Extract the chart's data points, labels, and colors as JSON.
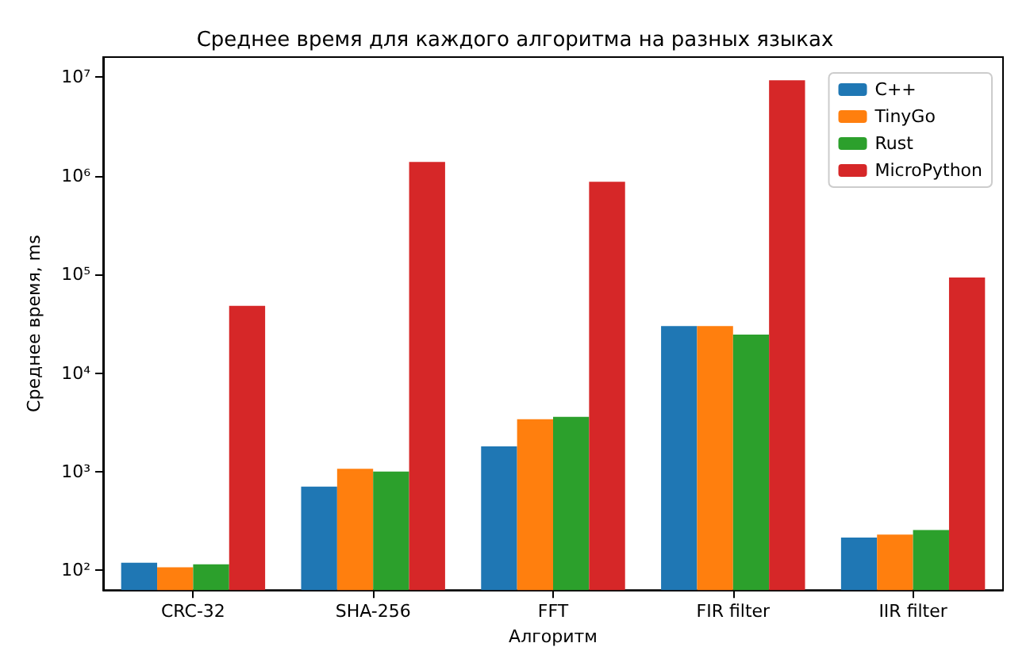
{
  "chart_data": {
    "type": "bar",
    "title": "Среднее время для каждого алгоритма на разных языках",
    "xlabel": "Алгоритм",
    "ylabel": "Среднее время, ms",
    "categories": [
      "CRC-32",
      "SHA-256",
      "FFT",
      "FIR filter",
      "IIR filter"
    ],
    "series": [
      {
        "name": "C++",
        "color": "#1f77b4",
        "values": [
          119,
          705,
          1800,
          30000,
          215
        ]
      },
      {
        "name": "TinyGo",
        "color": "#ff7f0e",
        "values": [
          107,
          1070,
          3400,
          30000,
          230
        ]
      },
      {
        "name": "Rust",
        "color": "#2ca02c",
        "values": [
          115,
          1000,
          3600,
          24500,
          256
        ]
      },
      {
        "name": "MicroPython",
        "color": "#d62728",
        "values": [
          48000,
          1380000,
          870000,
          9300000,
          93000
        ]
      }
    ],
    "log": "y",
    "ylim": [
      63,
      16000000
    ],
    "yticks": [
      {
        "value": 100,
        "label": "10²"
      },
      {
        "value": 1000,
        "label": "10³"
      },
      {
        "value": 10000,
        "label": "10⁴"
      },
      {
        "value": 100000,
        "label": "10⁵"
      },
      {
        "value": 1000000,
        "label": "10⁶"
      },
      {
        "value": 10000000,
        "label": "10⁷"
      }
    ],
    "grid": false,
    "legend": "top right"
  }
}
